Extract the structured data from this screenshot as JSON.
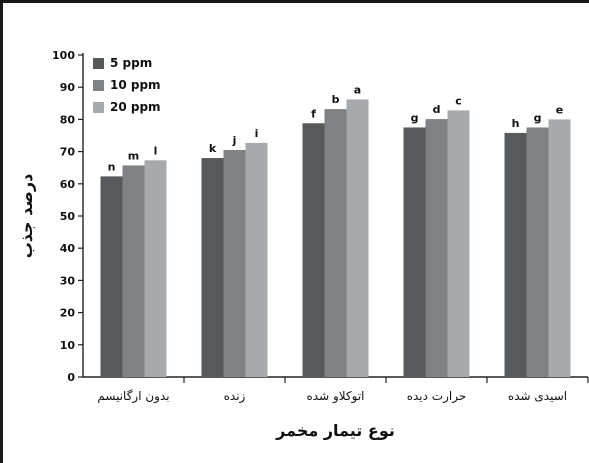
{
  "chart_data": {
    "type": "bar",
    "xlabel": "نوع تیمار مخمر",
    "ylabel": "درصد جذب",
    "ylim": [
      0,
      100
    ],
    "yticks": [
      0,
      10,
      20,
      30,
      40,
      50,
      60,
      70,
      80,
      90,
      100
    ],
    "grid": false,
    "legend_position": "top-left",
    "categories": [
      "بدون ارگانیسم",
      "زنده",
      "اتوکلاو شده",
      "حرارت دیده",
      "اسیدی شده"
    ],
    "series": [
      {
        "name": "5 ppm",
        "color": "#58595b",
        "values": [
          62.3,
          68.0,
          78.8,
          77.5,
          75.8
        ],
        "letters": [
          "n",
          "k",
          "f",
          "g",
          "h"
        ]
      },
      {
        "name": "10 ppm",
        "color": "#808184",
        "values": [
          65.7,
          70.5,
          83.2,
          80.1,
          77.5
        ],
        "letters": [
          "m",
          "j",
          "b",
          "d",
          "g"
        ]
      },
      {
        "name": "20 ppm",
        "color": "#a7a9ac",
        "values": [
          67.3,
          72.7,
          86.2,
          82.8,
          80.0
        ],
        "letters": [
          "l",
          "i",
          "a",
          "c",
          "e"
        ]
      }
    ]
  }
}
